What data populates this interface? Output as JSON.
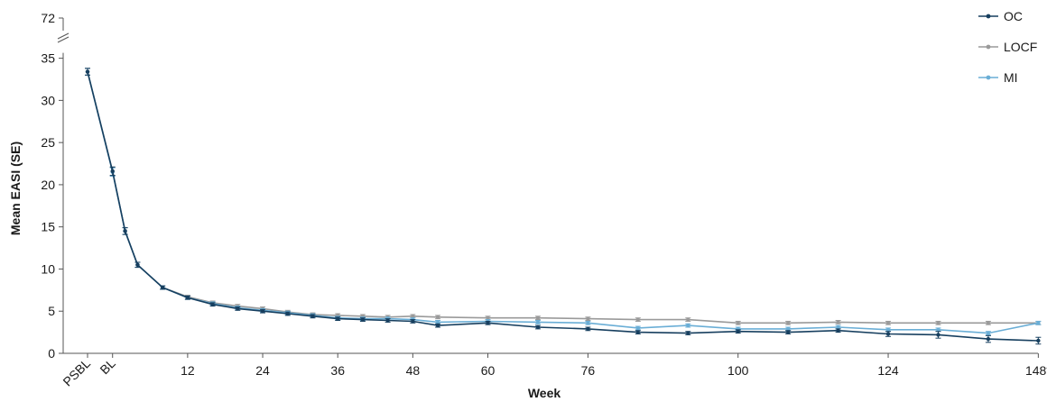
{
  "chart_data": {
    "type": "line",
    "title": "",
    "xlabel": "Week",
    "ylabel": "Mean EASI (SE)",
    "ylim": [
      0,
      35
    ],
    "y_break_label": "72",
    "y_ticks": [
      0,
      5,
      10,
      15,
      20,
      25,
      30,
      35
    ],
    "x_tick_labels": [
      {
        "label": "PSBL",
        "week": -4,
        "rotated": true
      },
      {
        "label": "BL",
        "week": 0,
        "rotated": true
      },
      {
        "label": "12",
        "week": 12
      },
      {
        "label": "24",
        "week": 24
      },
      {
        "label": "36",
        "week": 36
      },
      {
        "label": "48",
        "week": 48
      },
      {
        "label": "60",
        "week": 60
      },
      {
        "label": "76",
        "week": 76
      },
      {
        "label": "100",
        "week": 100
      },
      {
        "label": "124",
        "week": 124
      },
      {
        "label": "148*",
        "week": 148
      }
    ],
    "x": [
      -4,
      0,
      2,
      4,
      8,
      12,
      16,
      20,
      24,
      28,
      32,
      36,
      40,
      44,
      48,
      52,
      60,
      68,
      76,
      84,
      92,
      100,
      108,
      116,
      124,
      132,
      140,
      148
    ],
    "legend_position": "top-right",
    "series": [
      {
        "name": "OC",
        "color": "#173f5f",
        "values": [
          33.4,
          21.6,
          14.5,
          10.5,
          7.8,
          6.6,
          5.8,
          5.3,
          5.0,
          4.7,
          4.4,
          4.1,
          4.0,
          3.9,
          3.8,
          3.3,
          3.6,
          3.1,
          2.9,
          2.5,
          2.4,
          2.6,
          2.5,
          2.7,
          2.3,
          2.2,
          1.7,
          1.5
        ],
        "errors": [
          0.4,
          0.5,
          0.4,
          0.3,
          0.2,
          0.2,
          0.2,
          0.2,
          0.2,
          0.2,
          0.2,
          0.2,
          0.2,
          0.2,
          0.2,
          0.2,
          0.2,
          0.2,
          0.2,
          0.2,
          0.2,
          0.2,
          0.2,
          0.2,
          0.3,
          0.4,
          0.4,
          0.4
        ]
      },
      {
        "name": "LOCF",
        "color": "#9a9a9a",
        "values": [
          33.4,
          21.6,
          14.5,
          10.5,
          7.8,
          6.7,
          6.0,
          5.6,
          5.3,
          4.9,
          4.6,
          4.5,
          4.4,
          4.3,
          4.4,
          4.3,
          4.2,
          4.2,
          4.1,
          4.0,
          4.0,
          3.6,
          3.6,
          3.7,
          3.6,
          3.6,
          3.6,
          3.6
        ],
        "errors": [
          0.4,
          0.5,
          0.4,
          0.3,
          0.2,
          0.2,
          0.2,
          0.2,
          0.2,
          0.2,
          0.2,
          0.2,
          0.2,
          0.2,
          0.2,
          0.2,
          0.2,
          0.2,
          0.2,
          0.2,
          0.2,
          0.2,
          0.2,
          0.2,
          0.2,
          0.2,
          0.2,
          0.2
        ]
      },
      {
        "name": "MI",
        "color": "#6aaed6",
        "values": [
          33.4,
          21.5,
          14.5,
          10.5,
          7.8,
          6.6,
          5.9,
          5.4,
          5.1,
          4.8,
          4.5,
          4.2,
          4.1,
          4.1,
          4.0,
          3.7,
          3.8,
          3.7,
          3.6,
          3.0,
          3.3,
          2.9,
          2.9,
          3.1,
          2.8,
          2.8,
          2.4,
          3.6
        ],
        "errors": [
          0.4,
          0.5,
          0.4,
          0.3,
          0.2,
          0.2,
          0.2,
          0.2,
          0.2,
          0.2,
          0.2,
          0.2,
          0.2,
          0.2,
          0.2,
          0.2,
          0.2,
          0.2,
          0.2,
          0.2,
          0.2,
          0.2,
          0.2,
          0.2,
          0.2,
          0.2,
          0.2,
          0.2
        ]
      }
    ]
  }
}
